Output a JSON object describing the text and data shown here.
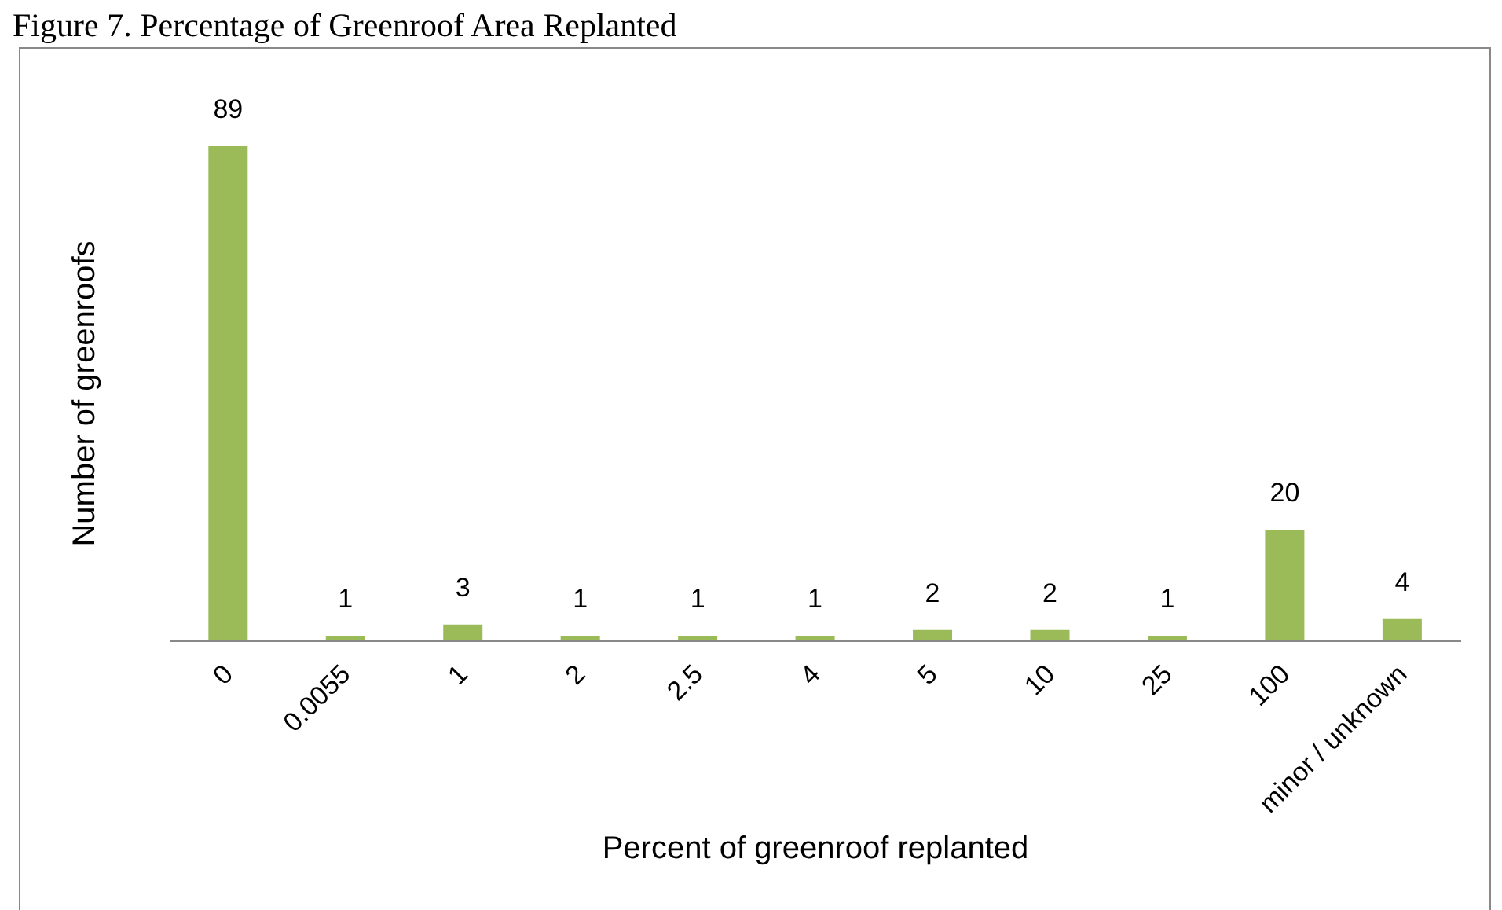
{
  "chart_data": {
    "type": "bar",
    "title": "Figure 7. Percentage of Greenroof Area Replanted",
    "xlabel": "Percent of greenroof replanted",
    "ylabel": "Number of greenroofs",
    "categories": [
      "0",
      "0.0055",
      "1",
      "2",
      "2.5",
      "4",
      "5",
      "10",
      "25",
      "100",
      "minor / unknown"
    ],
    "values": [
      89,
      1,
      3,
      1,
      1,
      1,
      2,
      2,
      1,
      20,
      4
    ],
    "color": "#9bbb59",
    "data_labels": true,
    "tick_labels": "x",
    "grid": false,
    "legend": false
  }
}
